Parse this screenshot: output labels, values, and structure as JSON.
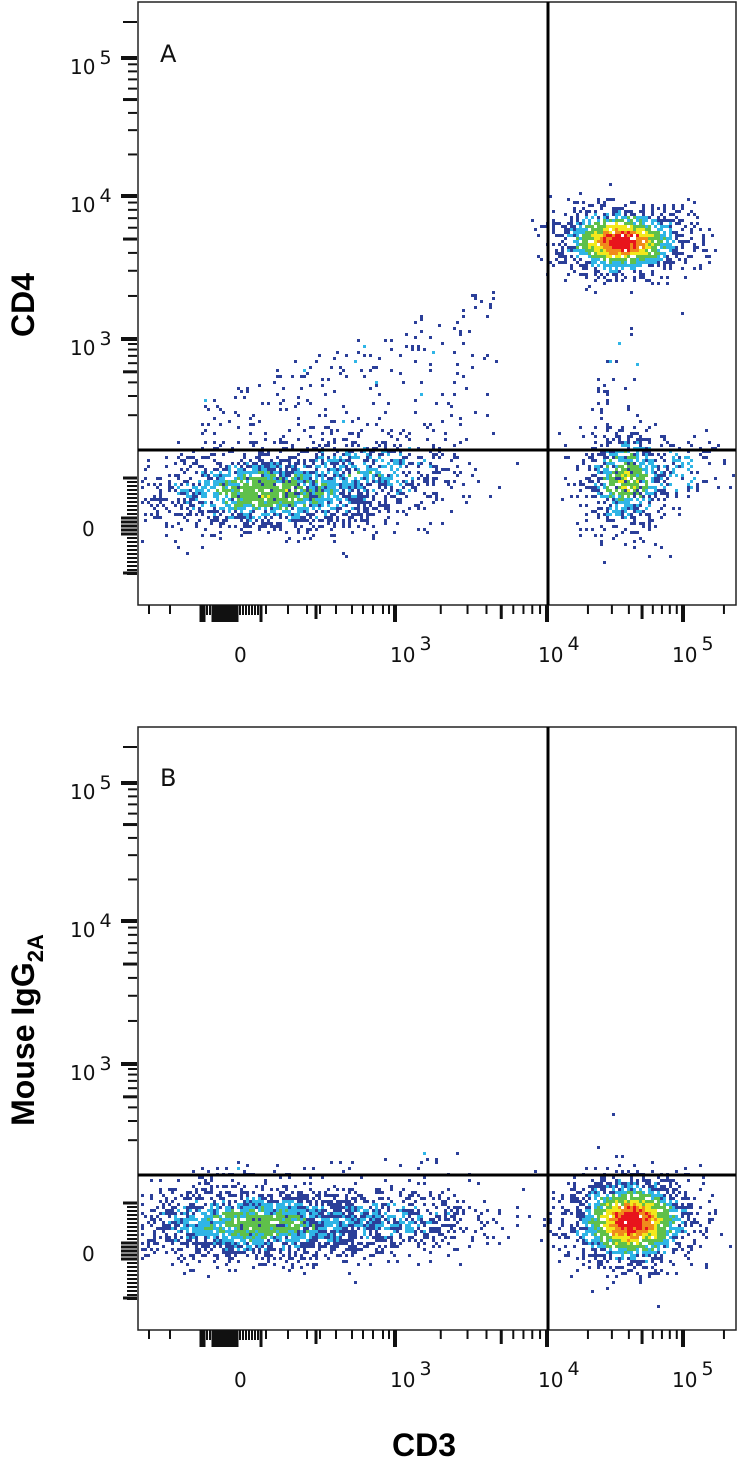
{
  "chart_data": [
    {
      "type": "scatter",
      "subtype": "flow-cytometry-density-dot-plot",
      "panel_label": "A",
      "xlabel": "CD3",
      "ylabel": "CD4",
      "x_scale": "biexponential",
      "y_scale": "biexponential",
      "x_tick_labels": [
        "0",
        "10^3",
        "10^4",
        "10^5"
      ],
      "y_tick_labels": [
        "0",
        "10^3",
        "10^4",
        "10^5"
      ],
      "quadrant_gates": {
        "x": 11000,
        "y": 200
      },
      "populations": [
        {
          "name": "CD3- CD4-",
          "quadrant": "lower-left",
          "center": {
            "x": 100,
            "y": 0
          },
          "spread_x": "~ -300 to 2000",
          "peak_color": "green",
          "density": "high"
        },
        {
          "name": "CD3+ CD4+",
          "quadrant": "upper-right",
          "center": {
            "x": 45000,
            "y": 5000
          },
          "peak_color": "red",
          "density": "very high"
        },
        {
          "name": "CD3+ CD4-",
          "quadrant": "lower-right",
          "center": {
            "x": 35000,
            "y": 0
          },
          "peak_color": "green/yellow",
          "density": "medium"
        },
        {
          "name": "scattered events",
          "quadrant": "upper-left",
          "center": {
            "x": 1500,
            "y": 600
          },
          "density": "sparse"
        }
      ],
      "colormap": [
        "#2b3f99",
        "#2fb5e6",
        "#5fc04a",
        "#f2e81c",
        "#f08a1c",
        "#e8141c"
      ]
    },
    {
      "type": "scatter",
      "subtype": "flow-cytometry-density-dot-plot",
      "panel_label": "B",
      "xlabel": "CD3",
      "ylabel": "Mouse IgG2A",
      "x_scale": "biexponential",
      "y_scale": "biexponential",
      "x_tick_labels": [
        "0",
        "10^3",
        "10^4",
        "10^5"
      ],
      "y_tick_labels": [
        "0",
        "10^3",
        "10^4",
        "10^5"
      ],
      "quadrant_gates": {
        "x": 11000,
        "y": 200
      },
      "populations": [
        {
          "name": "CD3- isotype-",
          "quadrant": "lower-left",
          "center": {
            "x": 200,
            "y": 0
          },
          "spread_x": "~ -300 to 3000",
          "peak_color": "green",
          "density": "high"
        },
        {
          "name": "CD3+ isotype-",
          "quadrant": "lower-right",
          "center": {
            "x": 45000,
            "y": 0
          },
          "peak_color": "red",
          "density": "very high"
        }
      ],
      "colormap": [
        "#2b3f99",
        "#2fb5e6",
        "#5fc04a",
        "#f2e81c",
        "#f08a1c",
        "#e8141c"
      ]
    }
  ],
  "panels": {
    "a": {
      "label": "A",
      "ylabel": "CD4"
    },
    "b": {
      "label": "B",
      "ylabel_main": "Mouse IgG",
      "ylabel_sub": "2A"
    }
  },
  "axes": {
    "x_ticks": [
      {
        "base": "0",
        "exp": ""
      },
      {
        "base": "10",
        "exp": "3"
      },
      {
        "base": "10",
        "exp": "4"
      },
      {
        "base": "10",
        "exp": "5"
      }
    ],
    "y_ticks": [
      {
        "base": "10",
        "exp": "5"
      },
      {
        "base": "10",
        "exp": "4"
      },
      {
        "base": "10",
        "exp": "3"
      },
      {
        "base": "0",
        "exp": ""
      }
    ],
    "xlabel": "CD3"
  }
}
